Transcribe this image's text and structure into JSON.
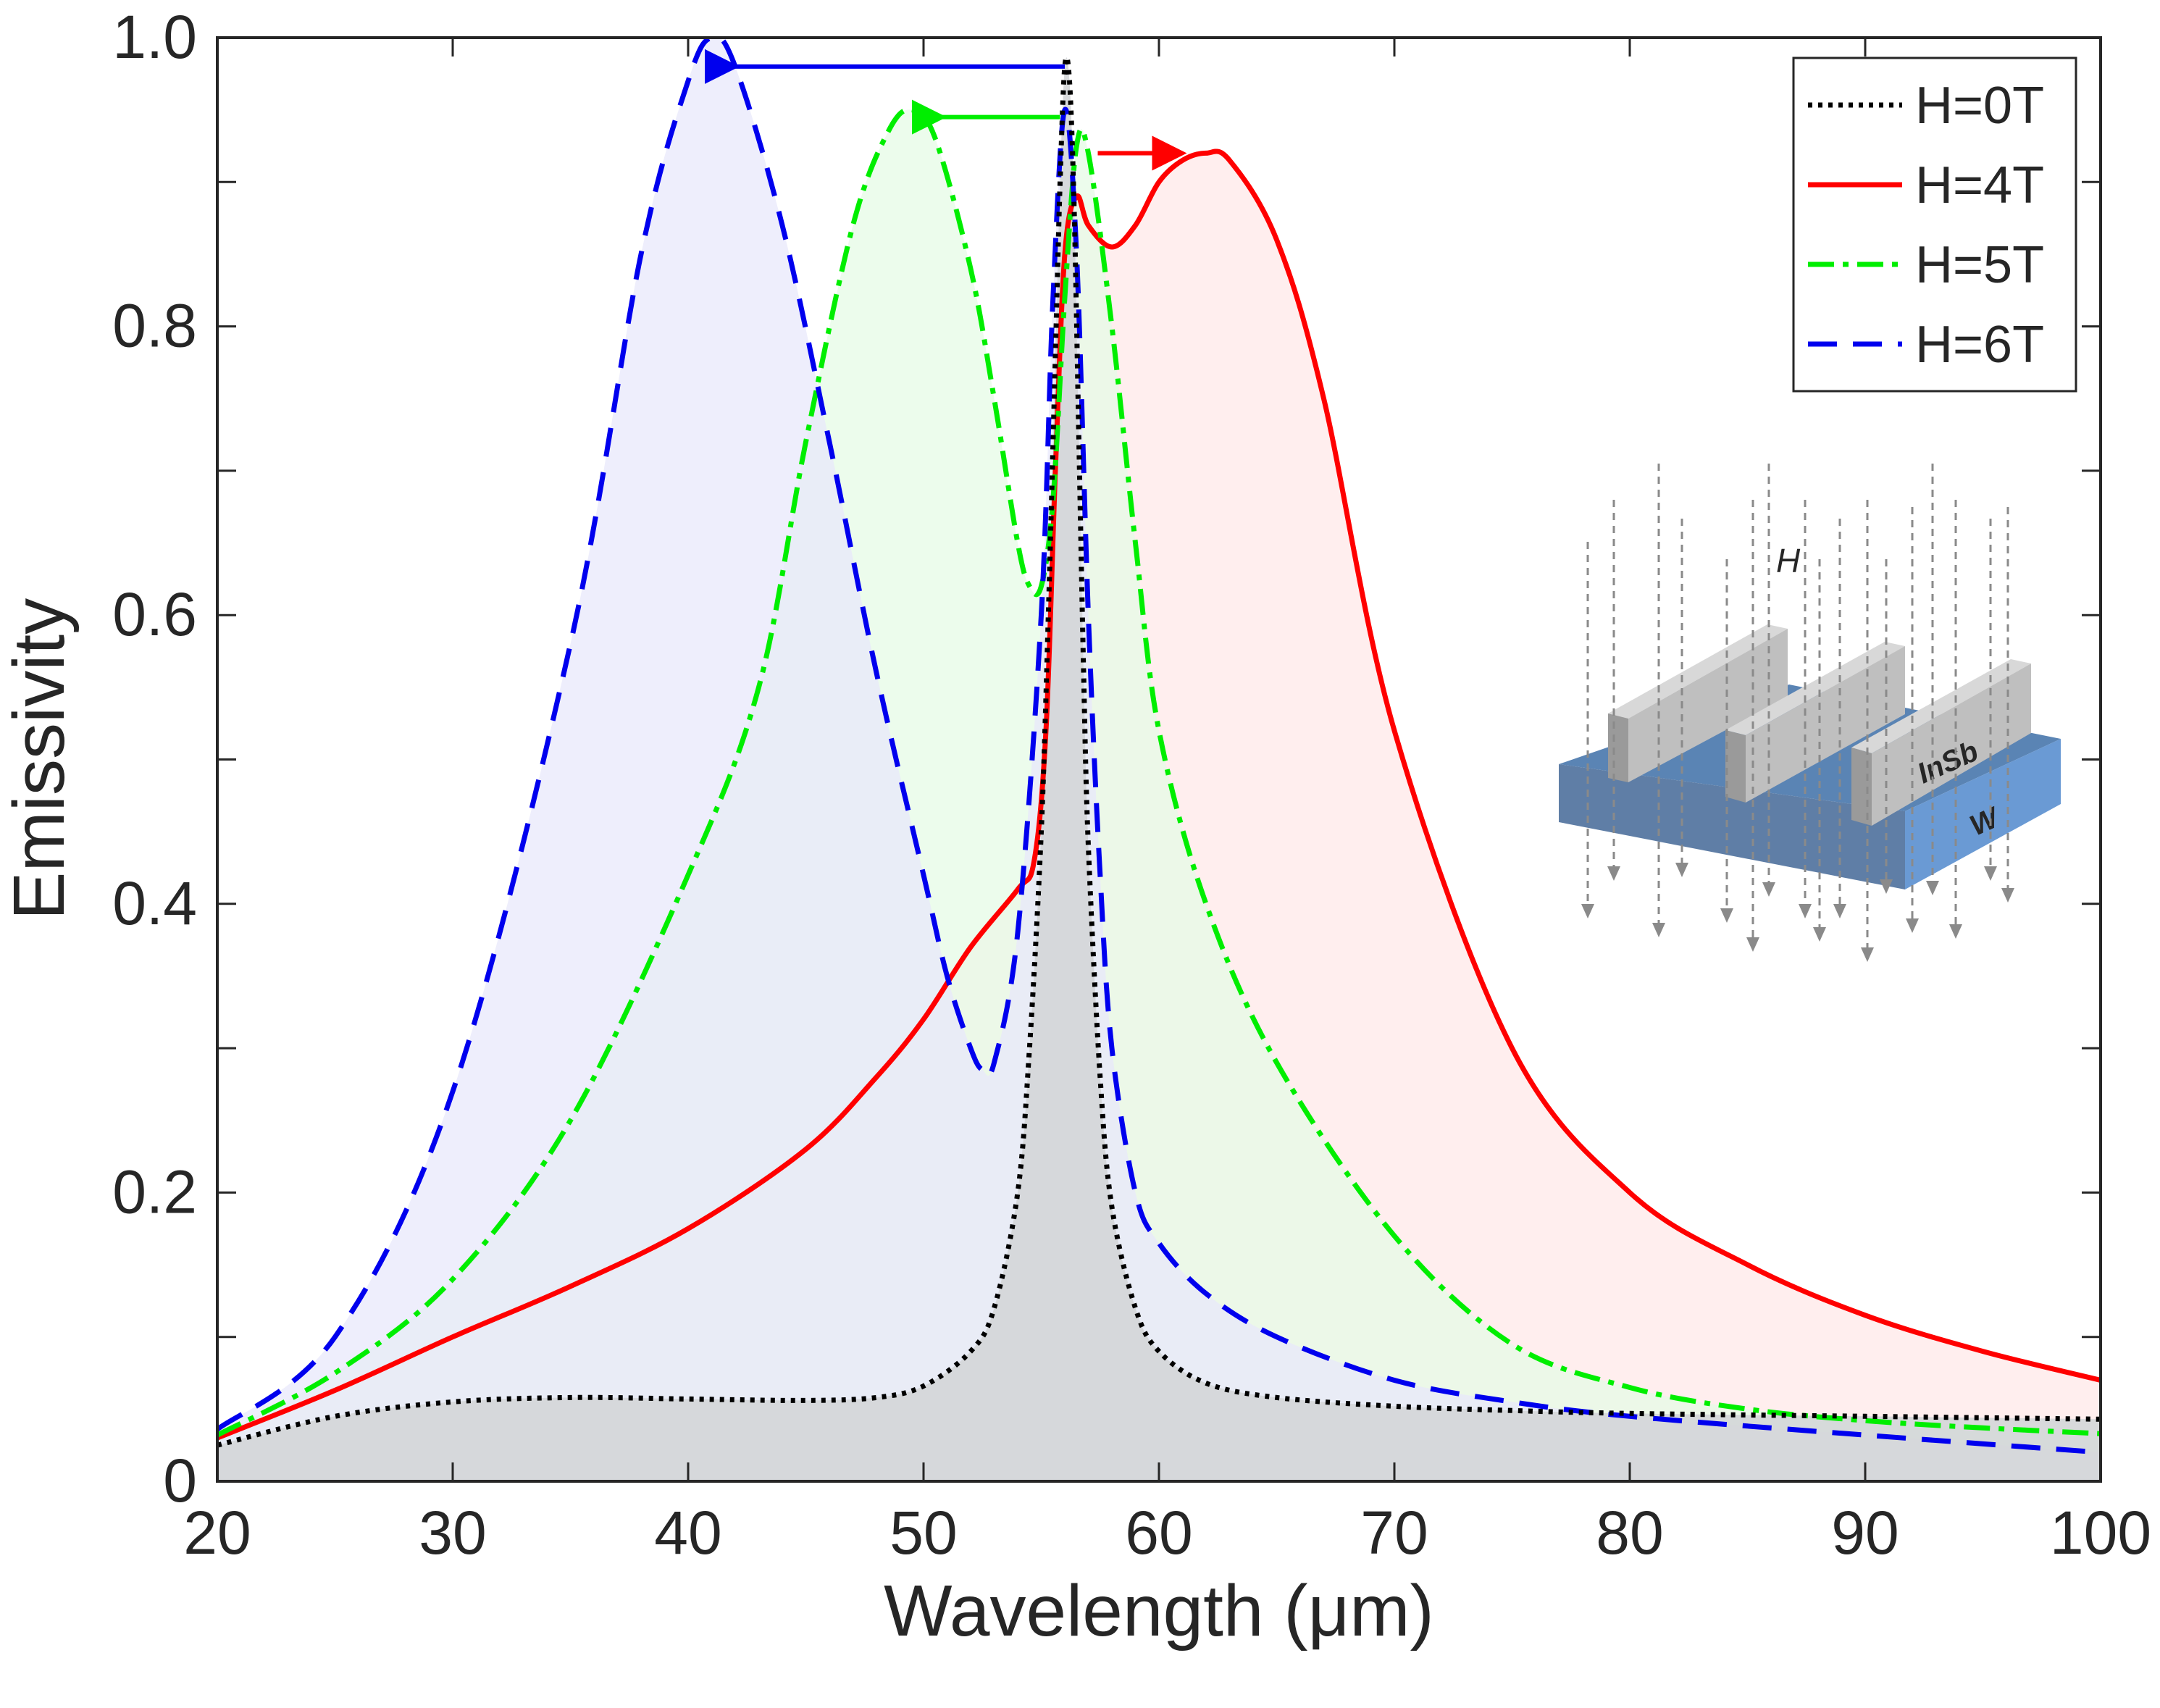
{
  "chart_data": {
    "type": "line",
    "title": "",
    "xlabel": "Wavelength (μm)",
    "ylabel": "Emissivity",
    "xlim": [
      20,
      100
    ],
    "ylim": [
      0,
      1.0
    ],
    "grid": false,
    "legend_position": "top-right",
    "xticks": [
      20,
      30,
      40,
      50,
      60,
      70,
      80,
      90,
      100
    ],
    "xtick_labels": [
      "20",
      "30",
      "40",
      "50",
      "60",
      "70",
      "80",
      "90",
      "100"
    ],
    "yticks": [
      0,
      0.2,
      0.4,
      0.6,
      0.8,
      1.0
    ],
    "ytick_labels": [
      "0",
      "0.2",
      "0.4",
      "0.6",
      "0.8",
      "1.0"
    ],
    "series": [
      {
        "name": "H=0T",
        "style": "dotted",
        "color": "#000000",
        "fill": "#d4d6d8",
        "x": [
          20,
          25,
          30,
          35,
          40,
          45,
          48,
          50,
          52,
          53,
          54,
          54.5,
          55,
          55.3,
          55.6,
          55.8,
          56,
          56.2,
          56.4,
          56.6,
          56.8,
          57,
          57.5,
          58,
          59,
          60,
          62,
          65,
          70,
          75,
          80,
          90,
          100
        ],
        "y": [
          0.025,
          0.045,
          0.055,
          0.058,
          0.057,
          0.056,
          0.058,
          0.066,
          0.09,
          0.12,
          0.2,
          0.3,
          0.45,
          0.6,
          0.78,
          0.9,
          0.98,
          0.97,
          0.88,
          0.72,
          0.56,
          0.44,
          0.28,
          0.19,
          0.12,
          0.09,
          0.068,
          0.058,
          0.052,
          0.049,
          0.047,
          0.045,
          0.043
        ]
      },
      {
        "name": "H=4T",
        "style": "solid",
        "color": "#ff0000",
        "fill": "#ffe8e8",
        "x": [
          20,
          25,
          30,
          35,
          40,
          45,
          48,
          50,
          52,
          54,
          54.7,
          55.2,
          55.6,
          56,
          56.5,
          57,
          58,
          59,
          60,
          61,
          62,
          63,
          65,
          67,
          70,
          75,
          80,
          85,
          90,
          95,
          100
        ],
        "y": [
          0.03,
          0.063,
          0.1,
          0.135,
          0.175,
          0.23,
          0.28,
          0.32,
          0.37,
          0.41,
          0.43,
          0.52,
          0.7,
          0.85,
          0.89,
          0.87,
          0.855,
          0.87,
          0.9,
          0.915,
          0.92,
          0.915,
          0.86,
          0.75,
          0.52,
          0.3,
          0.2,
          0.15,
          0.115,
          0.09,
          0.07
        ]
      },
      {
        "name": "H=5T",
        "style": "dash-dot",
        "color": "#00ee00",
        "fill": "#e6fbe6",
        "x": [
          20,
          25,
          30,
          35,
          40,
          43,
          45,
          47,
          48.5,
          49.5,
          50.5,
          52,
          53,
          54,
          54.5,
          55,
          55.5,
          56,
          56.5,
          57,
          58,
          59,
          60,
          62,
          65,
          70,
          75,
          80,
          85,
          90,
          95,
          100
        ],
        "y": [
          0.032,
          0.075,
          0.14,
          0.25,
          0.42,
          0.55,
          0.72,
          0.87,
          0.935,
          0.95,
          0.93,
          0.84,
          0.75,
          0.65,
          0.62,
          0.62,
          0.68,
          0.82,
          0.925,
          0.92,
          0.8,
          0.65,
          0.52,
          0.4,
          0.29,
          0.17,
          0.095,
          0.065,
          0.05,
          0.042,
          0.037,
          0.033
        ]
      },
      {
        "name": "H=6T",
        "style": "dashed",
        "color": "#0000ee",
        "fill": "#e8e8fb",
        "x": [
          20,
          25,
          30,
          35,
          38,
          40,
          41,
          42,
          44,
          46,
          48,
          50,
          51,
          52,
          52.5,
          53,
          54,
          55,
          55.5,
          56,
          56.5,
          57,
          57.5,
          58,
          59,
          60,
          62,
          65,
          70,
          75,
          80,
          90,
          100
        ],
        "y": [
          0.036,
          0.1,
          0.27,
          0.58,
          0.85,
          0.97,
          1.0,
          0.98,
          0.87,
          0.72,
          0.56,
          0.42,
          0.35,
          0.3,
          0.285,
          0.29,
          0.38,
          0.6,
          0.82,
          0.95,
          0.85,
          0.6,
          0.42,
          0.3,
          0.2,
          0.165,
          0.13,
          0.1,
          0.07,
          0.055,
          0.045,
          0.032,
          0.02
        ]
      }
    ],
    "annotations": [
      {
        "type": "arrow",
        "color": "#0000ee",
        "from": [
          56,
          0.98
        ],
        "to": [
          42,
          0.98
        ]
      },
      {
        "type": "arrow",
        "color": "#00ee00",
        "from": [
          55.8,
          0.945
        ],
        "to": [
          50.8,
          0.945
        ]
      },
      {
        "type": "arrow",
        "color": "#ff0000",
        "from": [
          57.4,
          0.92
        ],
        "to": [
          61,
          0.92
        ]
      }
    ],
    "inset": {
      "description_labels": [
        "H",
        "InSb",
        "W"
      ]
    }
  },
  "colors": {
    "axis": "#262626",
    "fill_0T": "#d4d6d8",
    "fill_4T": "#ffe8e8",
    "fill_5T": "#e6fbe6",
    "fill_6T": "#e8e8fb",
    "inset_substrate": "#6e96c8",
    "inset_bars": "#bdbdbd"
  }
}
